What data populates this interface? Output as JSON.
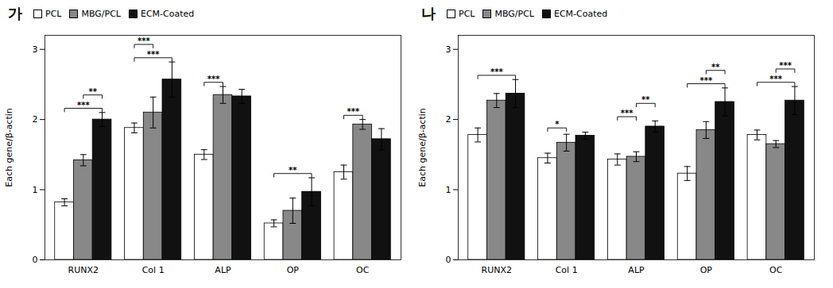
{
  "chart_data": [
    {
      "type": "bar",
      "title": "가",
      "categories": [
        "RUNX2",
        "Col 1",
        "ALP",
        "OP",
        "OC"
      ],
      "series": [
        {
          "name": "PCL",
          "color": "white",
          "values": [
            0.82,
            1.88,
            1.5,
            0.52,
            1.25
          ],
          "errors": [
            0.05,
            0.07,
            0.07,
            0.05,
            0.1
          ]
        },
        {
          "name": "MBG/PCL",
          "color": "#888888",
          "values": [
            1.42,
            2.1,
            2.35,
            0.7,
            1.93
          ],
          "errors": [
            0.08,
            0.22,
            0.12,
            0.18,
            0.07
          ]
        },
        {
          "name": "ECM-Coated",
          "color": "#111111",
          "values": [
            2.0,
            2.57,
            2.33,
            0.97,
            1.72
          ],
          "errors": [
            0.1,
            0.25,
            0.1,
            0.2,
            0.15
          ]
        }
      ],
      "annotations": [
        {
          "category": "RUNX2",
          "from": "PCL",
          "to": "ECM-Coated",
          "text": "***"
        },
        {
          "category": "RUNX2",
          "from": "MBG/PCL",
          "to": "ECM-Coated",
          "text": "**"
        },
        {
          "category": "Col 1",
          "from": "PCL",
          "to": "ECM-Coated",
          "text": "***"
        },
        {
          "category": "Col 1",
          "from": "PCL",
          "to": "MBG/PCL",
          "text": "***"
        },
        {
          "category": "ALP",
          "from": "PCL",
          "to": "MBG/PCL",
          "text": "***"
        },
        {
          "category": "OP",
          "from": "PCL",
          "to": "ECM-Coated",
          "text": "**"
        },
        {
          "category": "OC",
          "from": "PCL",
          "to": "MBG/PCL",
          "text": "***"
        }
      ],
      "ylabel": "Each gene/β-actin",
      "ylim": [
        0,
        3.2
      ],
      "yticks": [
        0,
        1,
        2,
        3
      ],
      "grid": false,
      "legend": "upper left"
    },
    {
      "type": "bar",
      "title": "나",
      "categories": [
        "RUNX2",
        "Col 1",
        "ALP",
        "OP",
        "OC"
      ],
      "series": [
        {
          "name": "PCL",
          "color": "white",
          "values": [
            1.78,
            1.45,
            1.43,
            1.23,
            1.78
          ],
          "errors": [
            0.1,
            0.07,
            0.08,
            0.1,
            0.07
          ]
        },
        {
          "name": "MBG/PCL",
          "color": "#888888",
          "values": [
            2.27,
            1.67,
            1.47,
            1.85,
            1.65
          ],
          "errors": [
            0.1,
            0.12,
            0.07,
            0.12,
            0.05
          ]
        },
        {
          "name": "ECM-Coated",
          "color": "#111111",
          "values": [
            2.37,
            1.77,
            1.9,
            2.25,
            2.27
          ],
          "errors": [
            0.2,
            0.05,
            0.08,
            0.2,
            0.2
          ]
        }
      ],
      "annotations": [
        {
          "category": "RUNX2",
          "from": "PCL",
          "to": "ECM-Coated",
          "text": "***"
        },
        {
          "category": "Col 1",
          "from": "PCL",
          "to": "MBG/PCL",
          "text": "*"
        },
        {
          "category": "ALP",
          "from": "PCL",
          "to": "MBG/PCL",
          "text": "***"
        },
        {
          "category": "ALP",
          "from": "MBG/PCL",
          "to": "ECM-Coated",
          "text": "**"
        },
        {
          "category": "OP",
          "from": "PCL",
          "to": "ECM-Coated",
          "text": "***"
        },
        {
          "category": "OP",
          "from": "MBG/PCL",
          "to": "ECM-Coated",
          "text": "**"
        },
        {
          "category": "OC",
          "from": "PCL",
          "to": "ECM-Coated",
          "text": "***"
        },
        {
          "category": "OC",
          "from": "MBG/PCL",
          "to": "ECM-Coated",
          "text": "***"
        }
      ],
      "ylabel": "Each gene/β-actin",
      "ylim": [
        0,
        3.2
      ],
      "yticks": [
        0,
        1,
        2,
        3
      ],
      "grid": false,
      "legend": "upper left"
    }
  ]
}
